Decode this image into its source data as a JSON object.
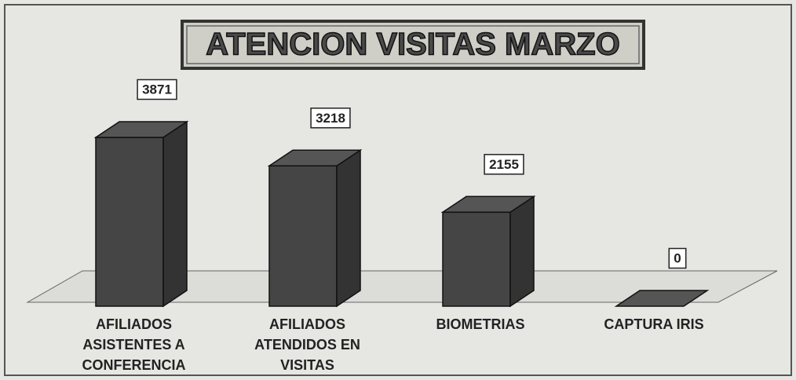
{
  "chart_data": {
    "type": "bar3d",
    "title": "ATENCION VISITAS MARZO",
    "categories": [
      "AFILIADOS ASISTENTES A CONFERENCIA",
      "AFILIADOS ATENDIDOS EN VISITAS",
      "BIOMETRIAS",
      "CAPTURA IRIS"
    ],
    "values": [
      3871,
      3218,
      2155,
      0
    ],
    "color": "#454545"
  }
}
